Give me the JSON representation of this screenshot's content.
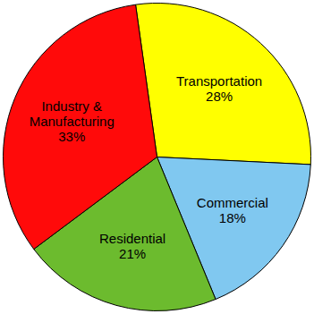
{
  "chart_data": {
    "type": "pie",
    "categories": [
      "Transportation",
      "Commercial",
      "Residential",
      "Industry & Manufacturing"
    ],
    "values": [
      28,
      18,
      21,
      33
    ],
    "value_labels": [
      "28%",
      "18%",
      "21%",
      "33%"
    ],
    "colors": [
      "#ffff00",
      "#80c8f0",
      "#6cbb2e",
      "#ff0a0a"
    ],
    "data_labels": true
  }
}
